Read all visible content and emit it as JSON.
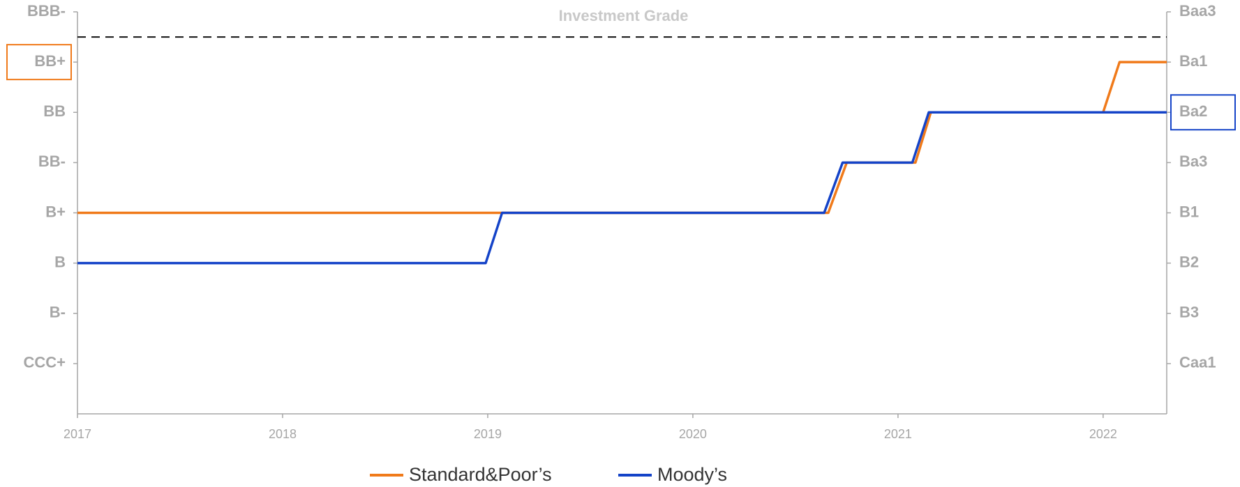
{
  "chart_data": {
    "type": "line",
    "reference_line": {
      "y": 7.5,
      "label": "Investment Grade"
    },
    "xlim": [
      2017,
      2022.31
    ],
    "xticks": [
      2017,
      2018,
      2019,
      2020,
      2021,
      2022
    ],
    "ylim": [
      0,
      8
    ],
    "yticks": [
      {
        "value": 8,
        "label": "BBB-"
      },
      {
        "value": 7,
        "label": "BB+"
      },
      {
        "value": 6,
        "label": "BB"
      },
      {
        "value": 5,
        "label": "BB-"
      },
      {
        "value": 4,
        "label": "B+"
      },
      {
        "value": 3,
        "label": "B"
      },
      {
        "value": 2,
        "label": "B-"
      },
      {
        "value": 1,
        "label": "CCC+"
      }
    ],
    "y2lim": [
      0,
      8
    ],
    "y2ticks": [
      {
        "value": 8,
        "label": "Baa3"
      },
      {
        "value": 7,
        "label": "Ba1"
      },
      {
        "value": 6,
        "label": "Ba2"
      },
      {
        "value": 5,
        "label": "Ba3"
      },
      {
        "value": 4,
        "label": "B1"
      },
      {
        "value": 3,
        "label": "B2"
      },
      {
        "value": 2,
        "label": "B3"
      },
      {
        "value": 1,
        "label": "Caa1"
      }
    ],
    "highlight": [
      {
        "axis": "y",
        "value": 7,
        "color": "#f07a1a"
      },
      {
        "axis": "y2",
        "value": 6,
        "color": "#1443c8"
      }
    ],
    "series": [
      {
        "name": "Standard&Poor’s",
        "color": "#f07a1a",
        "x": [
          2017,
          2020.66,
          2020.75,
          2021.085,
          2021.16,
          2022.0,
          2022.08,
          2022.31
        ],
        "values": [
          4,
          4,
          5,
          5,
          6,
          6,
          7,
          7
        ]
      },
      {
        "name": "Moody’s",
        "color": "#1443c8",
        "x": [
          2017,
          2018.99,
          2019.07,
          2020.64,
          2020.73,
          2021.07,
          2021.15,
          2022.31
        ],
        "values": [
          3,
          3,
          4,
          4,
          5,
          5,
          6,
          6
        ]
      }
    ]
  }
}
